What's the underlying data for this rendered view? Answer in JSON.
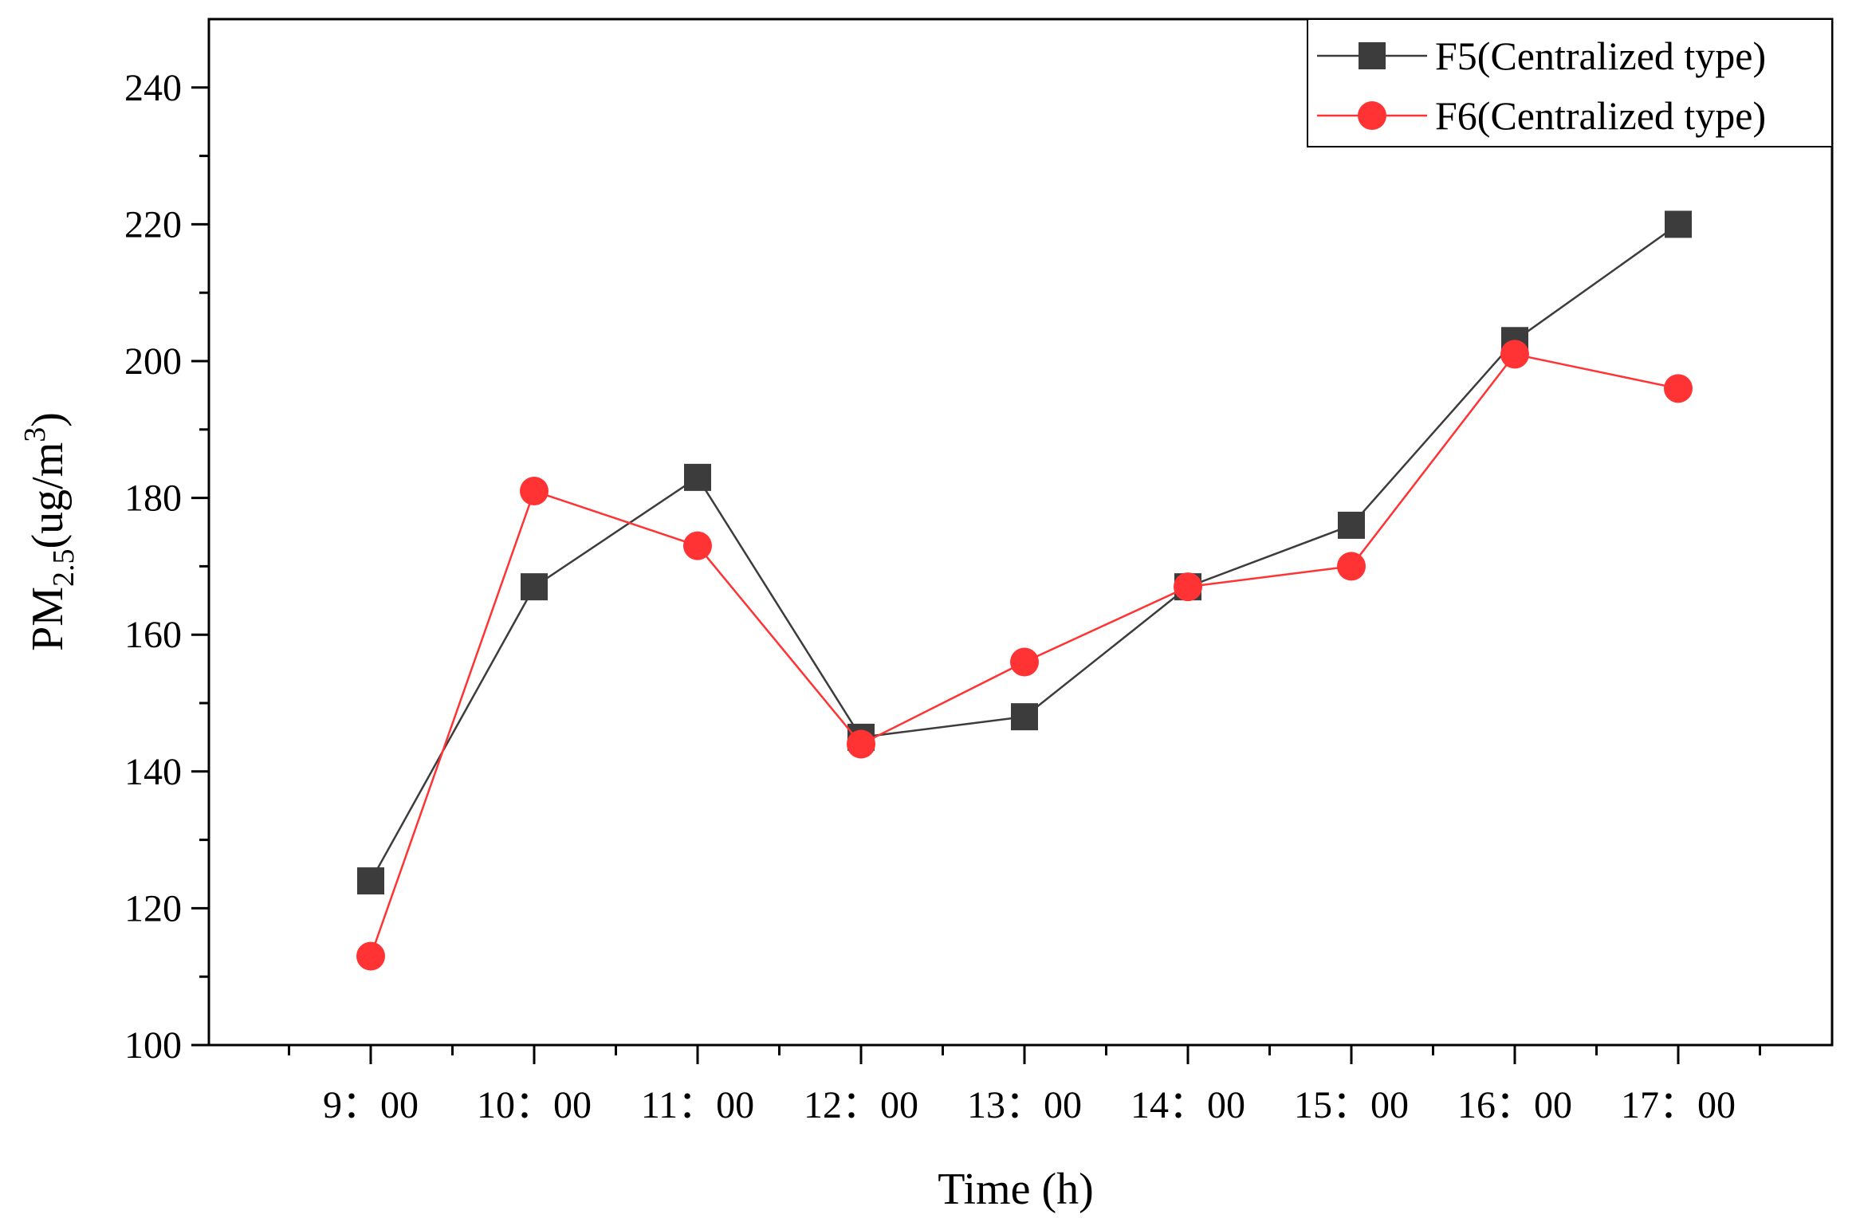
{
  "chart_data": {
    "type": "line",
    "title": "",
    "xlabel": "Time (h)",
    "ylabel": {
      "main": "PM",
      "subscript": "2.5",
      "unit_open": "(ug/m",
      "superscript": "3",
      "unit_close": ")"
    },
    "categories": [
      "9：00",
      "10：00",
      "11：00",
      "12：00",
      "13：00",
      "14：00",
      "15：00",
      "16：00",
      "17：00"
    ],
    "ylim": [
      100,
      250
    ],
    "yticks": [
      100,
      120,
      140,
      160,
      180,
      200,
      220,
      240
    ],
    "grid": false,
    "legend_position": "top-right",
    "series": [
      {
        "name": "F5(Centralized type)",
        "marker": "square",
        "color": "#3c3c3c",
        "values": [
          124,
          167,
          183,
          145,
          148,
          167,
          176,
          203,
          220
        ]
      },
      {
        "name": "F6(Centralized type)",
        "marker": "circle",
        "color": "#ff3333",
        "values": [
          113,
          181,
          173,
          144,
          156,
          167,
          170,
          201,
          196
        ]
      }
    ]
  }
}
